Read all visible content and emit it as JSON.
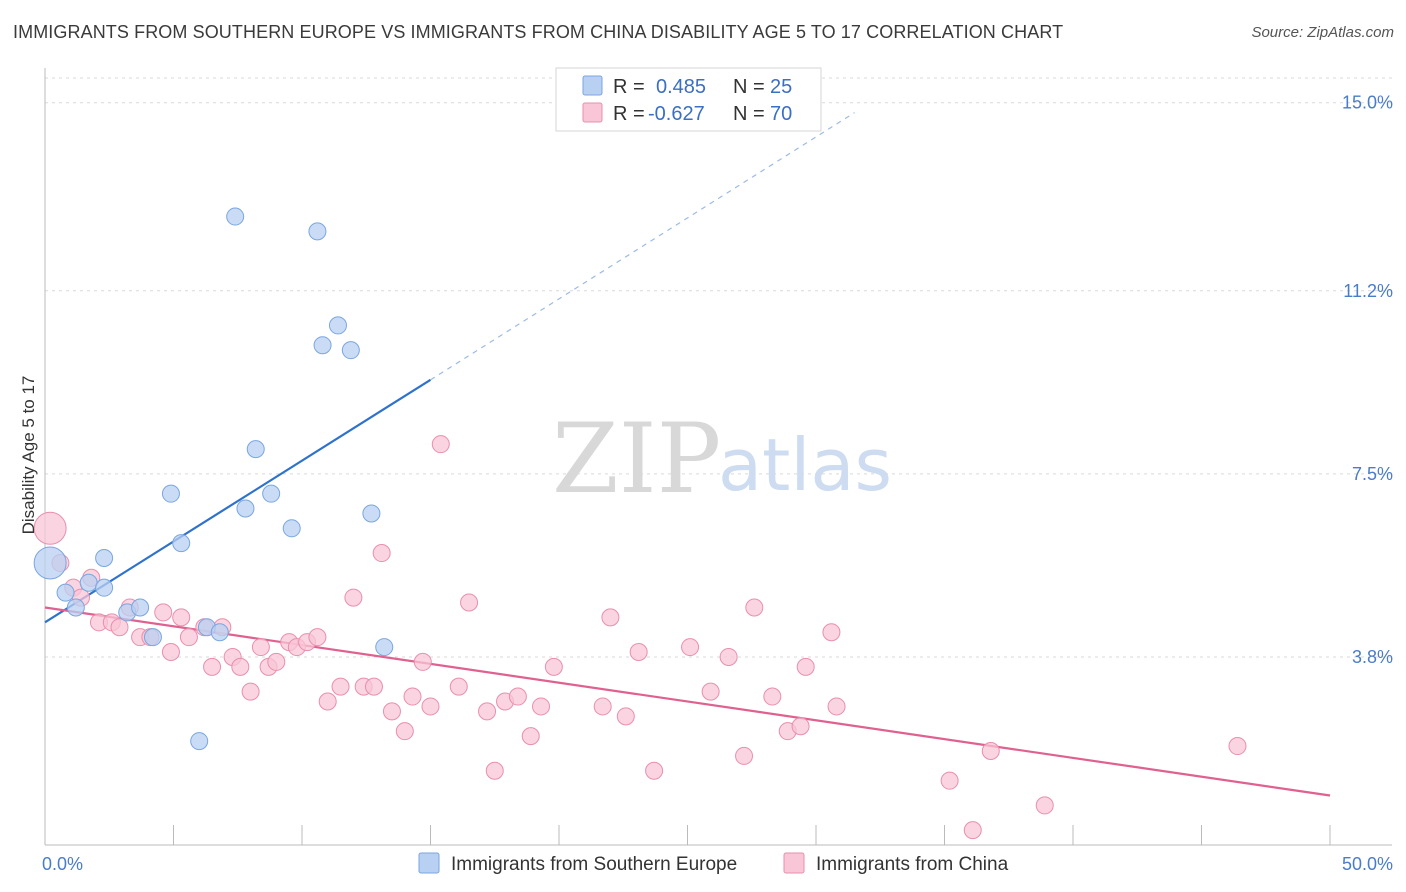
{
  "title": "IMMIGRANTS FROM SOUTHERN EUROPE VS IMMIGRANTS FROM CHINA DISABILITY AGE 5 TO 17 CORRELATION CHART",
  "source": "Source: ZipAtlas.com",
  "watermark": {
    "zip": "ZIP",
    "atlas": "atlas"
  },
  "colors": {
    "blue_fill": "#b8d0f2",
    "blue_stroke": "#7aa6e0",
    "blue_line": "#2f72cc",
    "pink_fill": "#f8c6d6",
    "pink_stroke": "#e98fae",
    "pink_line": "#e0608f",
    "grid": "#d9d9d9",
    "tick_text": "#4a7cc9"
  },
  "legend": {
    "rows": [
      {
        "r_label": "R =",
        "r_value": "0.485",
        "n_label": "N =",
        "n_value": "25"
      },
      {
        "r_label": "R =",
        "r_value": "-0.627",
        "n_label": "N =",
        "n_value": "70"
      }
    ]
  },
  "bottom_legend": [
    "Immigrants from Southern Europe",
    "Immigrants from China"
  ],
  "chart_data": {
    "type": "scatter",
    "xlabel": "",
    "ylabel": "Disability Age 5 to 17",
    "xlim": [
      0,
      50
    ],
    "ylim": [
      0,
      15.5
    ],
    "x_tick_labels": [
      "0.0%",
      "50.0%"
    ],
    "y_ticks": [
      3.8,
      7.5,
      11.2,
      15.0
    ],
    "y_tick_labels": [
      "3.8%",
      "7.5%",
      "11.2%",
      "15.0%"
    ],
    "grid": true,
    "legend_position": "top-center",
    "series": [
      {
        "name": "Immigrants from Southern Europe",
        "r": 0.485,
        "n": 25,
        "trend": {
          "x0": 0,
          "y0": 4.5,
          "x1": 15,
          "y1": 9.4,
          "dash_to_x": 31.5,
          "dash_to_y": 14.8
        },
        "points": [
          [
            0.2,
            5.7
          ],
          [
            0.8,
            5.1
          ],
          [
            1.2,
            4.8
          ],
          [
            1.7,
            5.3
          ],
          [
            2.3,
            5.8
          ],
          [
            2.3,
            5.2
          ],
          [
            3.2,
            4.7
          ],
          [
            3.7,
            4.8
          ],
          [
            4.2,
            4.2
          ],
          [
            4.9,
            7.1
          ],
          [
            5.3,
            6.1
          ],
          [
            6.0,
            2.1
          ],
          [
            6.3,
            4.4
          ],
          [
            6.8,
            4.3
          ],
          [
            7.4,
            12.7
          ],
          [
            7.8,
            6.8
          ],
          [
            8.2,
            8.0
          ],
          [
            8.8,
            7.1
          ],
          [
            9.6,
            6.4
          ],
          [
            10.6,
            12.4
          ],
          [
            10.8,
            10.1
          ],
          [
            11.4,
            10.5
          ],
          [
            11.9,
            10.0
          ],
          [
            12.7,
            6.7
          ],
          [
            13.2,
            4.0
          ]
        ]
      },
      {
        "name": "Immigrants from China",
        "r": -0.627,
        "n": 70,
        "trend": {
          "x0": 0,
          "y0": 4.8,
          "x1": 50,
          "y1": 1.0
        },
        "points": [
          [
            0.2,
            6.4
          ],
          [
            0.6,
            5.7
          ],
          [
            1.1,
            5.2
          ],
          [
            1.4,
            5.0
          ],
          [
            1.8,
            5.4
          ],
          [
            2.1,
            4.5
          ],
          [
            2.6,
            4.5
          ],
          [
            2.9,
            4.4
          ],
          [
            3.3,
            4.8
          ],
          [
            3.7,
            4.2
          ],
          [
            4.1,
            4.2
          ],
          [
            4.6,
            4.7
          ],
          [
            4.9,
            3.9
          ],
          [
            5.3,
            4.6
          ],
          [
            5.6,
            4.2
          ],
          [
            6.2,
            4.4
          ],
          [
            6.5,
            3.6
          ],
          [
            6.9,
            4.4
          ],
          [
            7.3,
            3.8
          ],
          [
            7.6,
            3.6
          ],
          [
            8.0,
            3.1
          ],
          [
            8.4,
            4.0
          ],
          [
            8.7,
            3.6
          ],
          [
            9.0,
            3.7
          ],
          [
            9.5,
            4.1
          ],
          [
            9.8,
            4.0
          ],
          [
            10.2,
            4.1
          ],
          [
            10.6,
            4.2
          ],
          [
            11.0,
            2.9
          ],
          [
            11.5,
            3.2
          ],
          [
            12.0,
            5.0
          ],
          [
            12.4,
            3.2
          ],
          [
            12.8,
            3.2
          ],
          [
            13.1,
            5.9
          ],
          [
            13.5,
            2.7
          ],
          [
            14.0,
            2.3
          ],
          [
            14.3,
            3.0
          ],
          [
            14.7,
            3.7
          ],
          [
            15.0,
            2.8
          ],
          [
            15.4,
            8.1
          ],
          [
            16.1,
            3.2
          ],
          [
            16.5,
            4.9
          ],
          [
            17.2,
            2.7
          ],
          [
            17.5,
            1.5
          ],
          [
            17.9,
            2.9
          ],
          [
            18.4,
            3.0
          ],
          [
            18.9,
            2.2
          ],
          [
            19.3,
            2.8
          ],
          [
            19.8,
            3.6
          ],
          [
            21.7,
            2.8
          ],
          [
            22.0,
            4.6
          ],
          [
            22.6,
            2.6
          ],
          [
            23.1,
            3.9
          ],
          [
            23.7,
            1.5
          ],
          [
            25.1,
            4.0
          ],
          [
            25.9,
            3.1
          ],
          [
            26.6,
            3.8
          ],
          [
            27.2,
            1.8
          ],
          [
            27.6,
            4.8
          ],
          [
            28.3,
            3.0
          ],
          [
            28.9,
            2.3
          ],
          [
            29.4,
            2.4
          ],
          [
            29.6,
            3.6
          ],
          [
            30.6,
            4.3
          ],
          [
            30.8,
            2.8
          ],
          [
            35.2,
            1.3
          ],
          [
            36.1,
            0.3
          ],
          [
            36.8,
            1.9
          ],
          [
            38.9,
            0.8
          ],
          [
            46.4,
            2.0
          ]
        ]
      }
    ]
  }
}
